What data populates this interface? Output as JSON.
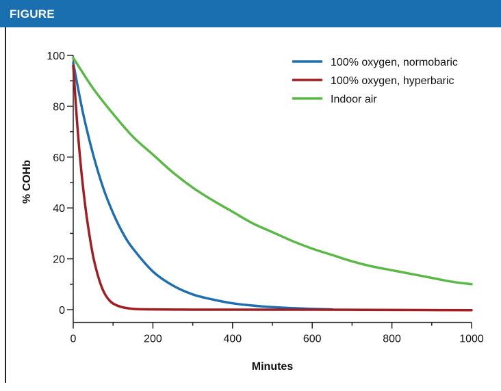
{
  "header": {
    "title": "FIGURE",
    "color": "#1a6fb0"
  },
  "chart_data": {
    "type": "line",
    "title": "",
    "xlabel": "Minutes",
    "ylabel": "% COHb",
    "xlim": [
      0,
      1000
    ],
    "ylim": [
      -5,
      100
    ],
    "x_ticks": [
      0,
      200,
      400,
      600,
      800,
      1000
    ],
    "y_ticks": [
      0,
      20,
      40,
      60,
      80,
      100
    ],
    "grid": false,
    "legend_position": "top-right",
    "series": [
      {
        "name": "100% oxygen, normobaric",
        "color": "#1f6fb0",
        "x": [
          0,
          25,
          50,
          75,
          100,
          125,
          150,
          200,
          250,
          300,
          350,
          400,
          450,
          500,
          550,
          600,
          650
        ],
        "y": [
          97,
          77,
          61,
          48,
          38,
          30,
          24,
          15,
          9.5,
          6,
          4,
          2.5,
          1.6,
          1,
          0.6,
          0.3,
          0.1
        ]
      },
      {
        "name": "100% oxygen, hyperbaric",
        "color": "#a11d21",
        "x": [
          0,
          10,
          20,
          30,
          40,
          50,
          60,
          70,
          80,
          90,
          100,
          120,
          140,
          160,
          200,
          300,
          400,
          600,
          800,
          1000
        ],
        "y": [
          96,
          73,
          55,
          41,
          30,
          21,
          14.5,
          9.5,
          6,
          3.8,
          2.4,
          1.1,
          0.5,
          0.2,
          0.1,
          0,
          0,
          0,
          -0.1,
          -0.2
        ]
      },
      {
        "name": "Indoor air",
        "color": "#5ab946",
        "x": [
          0,
          50,
          100,
          150,
          200,
          250,
          300,
          350,
          400,
          450,
          500,
          550,
          600,
          650,
          700,
          750,
          800,
          850,
          900,
          950,
          1000
        ],
        "y": [
          99,
          87,
          77,
          68,
          61,
          54,
          48,
          43,
          38.5,
          34,
          30.5,
          27,
          24,
          21.5,
          19,
          17,
          15.5,
          14,
          12.5,
          11,
          10
        ]
      }
    ]
  }
}
